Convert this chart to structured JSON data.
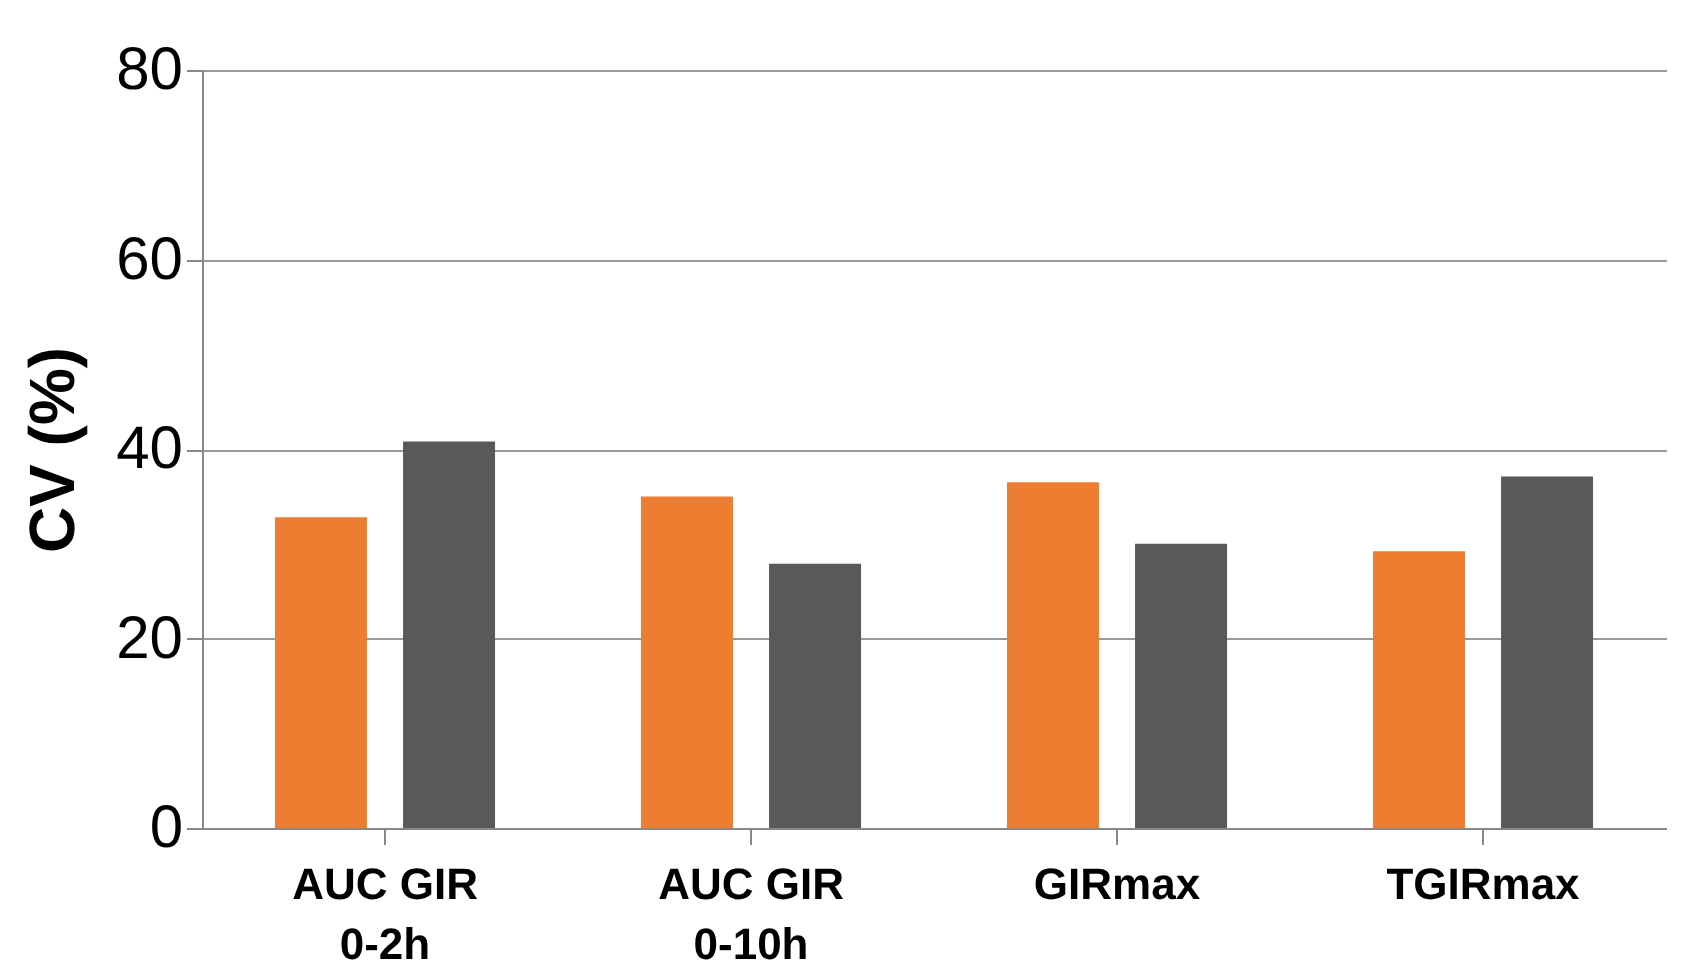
{
  "chart_data": {
    "type": "bar",
    "ylabel": "CV (%)",
    "categories": [
      "AUC GIR\n0-2h",
      "AUC GIR\n0-10h",
      "GIRmax",
      "TGIRmax"
    ],
    "series": [
      {
        "color": "#ed7d31",
        "values": [
          32.8,
          35.0,
          36.5,
          29.2
        ]
      },
      {
        "color": "#595959",
        "values": [
          40.8,
          27.9,
          30.0,
          37.1
        ]
      }
    ],
    "ylim": [
      0,
      80
    ],
    "yticks": [
      0,
      20,
      40,
      60,
      80
    ],
    "grid": "y",
    "legend": false
  }
}
